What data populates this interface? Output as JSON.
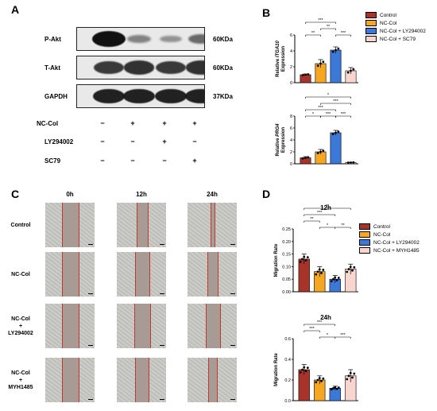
{
  "panels": {
    "a": "A",
    "b": "B",
    "c": "C",
    "d": "D"
  },
  "western_blot": {
    "proteins": [
      {
        "label": "P-Akt",
        "size": "60KDa",
        "intensities": [
          1.0,
          0.3,
          0.2,
          0.45
        ]
      },
      {
        "label": "T-Akt",
        "size": "60KDa",
        "intensities": [
          0.75,
          0.8,
          0.75,
          0.8
        ]
      },
      {
        "label": "GAPDH",
        "size": "37KDa",
        "intensities": [
          0.9,
          0.9,
          0.9,
          0.9
        ]
      }
    ],
    "treatments": [
      {
        "label": "NC-Col",
        "signs": [
          "−",
          "+",
          "+",
          "+"
        ]
      },
      {
        "label": "LY294002",
        "signs": [
          "−",
          "−",
          "+",
          "−"
        ]
      },
      {
        "label": "SC79",
        "signs": [
          "−",
          "−",
          "−",
          "+"
        ]
      }
    ]
  },
  "legend_b": [
    "Control",
    "NC-Col",
    "NC-Col + LY294002",
    "NC-Col + SC79"
  ],
  "legend_d": [
    "Control",
    "NC-Col",
    "NC-Col + LY294002",
    "NC-Col + MYH1485"
  ],
  "colors": {
    "control": "#a8332b",
    "nccol": "#f5a623",
    "ly": "#3c78d8",
    "sc79": "#f9d5cf"
  },
  "scratch": {
    "times": [
      "0h",
      "12h",
      "24h"
    ],
    "conditions": [
      {
        "lines": [
          "Control"
        ]
      },
      {
        "lines": [
          "NC-Col"
        ]
      },
      {
        "lines": [
          "NC-Col",
          "+",
          "LY294002"
        ]
      },
      {
        "lines": [
          "NC-Col",
          "+",
          "MYH1485"
        ]
      }
    ]
  },
  "chart_data": [
    {
      "type": "bar",
      "panel": "B",
      "ylabel_prefix": "Relative ",
      "ylabel_gene": "ITGA10",
      "ylabel_suffix": "Expression",
      "categories": [
        "Control",
        "NC-Col",
        "NC-Col + LY294002",
        "NC-Col + SC79"
      ],
      "values": [
        1.0,
        2.4,
        4.1,
        1.5
      ],
      "errors": [
        0.1,
        0.5,
        0.4,
        0.4
      ],
      "ylim": [
        0,
        6
      ],
      "yticks": [
        0,
        2,
        4,
        6
      ],
      "significance": [
        "***",
        "**",
        "**",
        "***"
      ]
    },
    {
      "type": "bar",
      "panel": "B",
      "ylabel_prefix": "Relative ",
      "ylabel_gene": "PRG4",
      "ylabel_suffix": "Expression",
      "categories": [
        "Control",
        "NC-Col",
        "NC-Col + LY294002",
        "NC-Col + SC79"
      ],
      "values": [
        1.0,
        2.0,
        5.2,
        0.2
      ],
      "errors": [
        0.2,
        0.4,
        0.4,
        0.05
      ],
      "ylim": [
        0,
        8
      ],
      "yticks": [
        0,
        2,
        4,
        6,
        8
      ],
      "significance": [
        "*",
        "***",
        "***",
        "*",
        "***",
        "***"
      ]
    },
    {
      "type": "bar",
      "panel": "D",
      "title": "12h",
      "ylabel": "Migration Rate",
      "categories": [
        "Control",
        "NC-Col",
        "NC-Col + LY294002",
        "NC-Col + MYH1485"
      ],
      "values": [
        0.13,
        0.08,
        0.05,
        0.09
      ],
      "errors": [
        0.02,
        0.02,
        0.015,
        0.02
      ],
      "ylim": [
        0,
        0.25
      ],
      "yticks": [
        "0.00",
        "0.05",
        "0.10",
        "0.15",
        "0.20",
        "0.25"
      ],
      "significance": [
        "**",
        "***",
        "**",
        "*",
        "**"
      ]
    },
    {
      "type": "bar",
      "panel": "D",
      "title": "24h",
      "ylabel": "Migration Rate",
      "categories": [
        "Control",
        "NC-Col",
        "NC-Col + LY294002",
        "NC-Col + MYH1485"
      ],
      "values": [
        0.3,
        0.2,
        0.12,
        0.24
      ],
      "errors": [
        0.05,
        0.04,
        0.02,
        0.06
      ],
      "ylim": [
        0,
        0.6
      ],
      "yticks": [
        "0.0",
        "0.2",
        "0.4",
        "0.6"
      ],
      "significance": [
        "***",
        "***",
        "*",
        "***"
      ]
    }
  ]
}
